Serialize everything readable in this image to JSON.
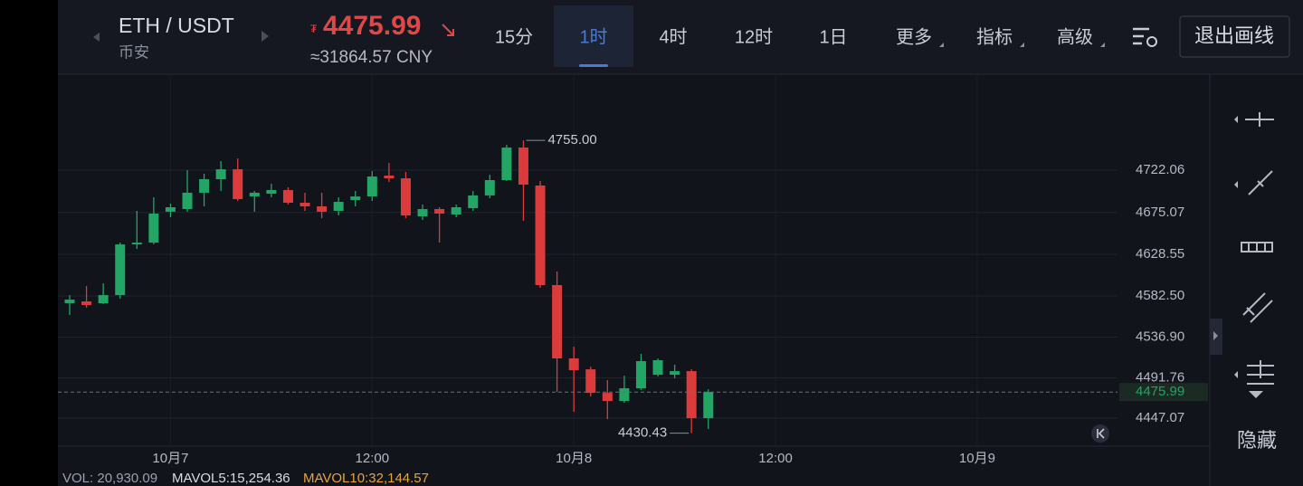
{
  "header": {
    "pair": "ETH / USDT",
    "exchange": "币安",
    "price_symbol": "₮",
    "price": "4475.99",
    "cny": "≈31864.57 CNY",
    "tabs": [
      "15分",
      "1时",
      "4时",
      "12时",
      "1日",
      "更多",
      "指标",
      "高级"
    ],
    "exit_button": "退出画线",
    "hide": "隐藏"
  },
  "chart_data": {
    "type": "candlestick",
    "up_color": "#22a565",
    "down_color": "#dc3b3b",
    "open": [
      4574.5,
      4576.5,
      4574.5,
      4583.5,
      4639.7,
      4641.7,
      4675.9,
      4678.9,
      4697,
      4712,
      4723,
      4692.9,
      4695.9,
      4700,
      4685.9,
      4681.9,
      4676.9,
      4688.9,
      4692.9,
      4716,
      4713,
      4670.8,
      4678.9,
      4672.8,
      4679.9,
      4694,
      4711,
      4747.1,
      4705,
      4594.6,
      4513.3,
      4501.2,
      4475.1,
      4466.1,
      4480.2,
      4495.2,
      4495.2,
      4499.2,
      4447
    ],
    "high": [
      4583.5,
      4593.5,
      4596.5,
      4641.7,
      4676.9,
      4691.9,
      4684.9,
      4722,
      4718,
      4732,
      4735,
      4699,
      4707,
      4703,
      4697,
      4697,
      4691.9,
      4699,
      4721,
      4730,
      4720,
      4683.9,
      4680.9,
      4683.9,
      4699,
      4717,
      4750.1,
      4755,
      4710,
      4609.6,
      4526.3,
      4504.2,
      4489.2,
      4494.2,
      4518.3,
      4513.3,
      4506.3,
      4501.2,
      4479.1
    ],
    "low": [
      4561.5,
      4569.5,
      4573.5,
      4579.5,
      4634.7,
      4639.7,
      4669.8,
      4675.9,
      4681.9,
      4699,
      4687.9,
      4675.9,
      4691.9,
      4683.9,
      4676.9,
      4668.8,
      4671.9,
      4681.9,
      4687.9,
      4709,
      4668.8,
      4666.8,
      4641.7,
      4669.8,
      4676.9,
      4690.9,
      4710,
      4665.8,
      4591.6,
      4476.1,
      4454.1,
      4471.1,
      4446,
      4464.1,
      4478.2,
      4493.2,
      4491.2,
      4430.43,
      4435
    ],
    "close": [
      4578.5,
      4572.5,
      4583.5,
      4639.7,
      4641.7,
      4673.9,
      4680.9,
      4697,
      4712,
      4723,
      4689.9,
      4697,
      4700,
      4685.9,
      4681.9,
      4675.9,
      4686.9,
      4692.9,
      4715,
      4713,
      4671.8,
      4678.9,
      4673.9,
      4680.9,
      4694,
      4711,
      4747.1,
      4706,
      4594.6,
      4513.3,
      4500.2,
      4475.1,
      4466.1,
      4480.2,
      4510.3,
      4511.3,
      4499.2,
      4447,
      4475.99
    ],
    "ylim": [
      4416,
      4828.4
    ],
    "yticks": [
      4722.06,
      4675.07,
      4628.55,
      {
        "value": 4582.5,
        "label": "4582.50"
      },
      {
        "value": 4536.9,
        "label": "4536.90"
      },
      4491.76,
      4447.07
    ],
    "xlim": [
      -0.7,
      62.35
    ],
    "xticks": [
      {
        "value": 6,
        "label": "10月7"
      },
      {
        "value": 18,
        "label": "12:00"
      },
      {
        "value": 30,
        "label": "10月8"
      },
      {
        "value": 42,
        "label": "12:00"
      },
      {
        "value": 54,
        "label": "10月9"
      }
    ],
    "annotations": [
      {
        "value": 4755,
        "label": "4755.00"
      },
      {
        "value": 4430.43,
        "label": "4430.43"
      }
    ],
    "current_price": 4475.99,
    "grid": true,
    "volume": {
      "vol": "VOL: 20,930.09",
      "mavol5": "MAVOL5:15,254.36",
      "mavol10": "MAVOL10:32,144.57"
    }
  }
}
